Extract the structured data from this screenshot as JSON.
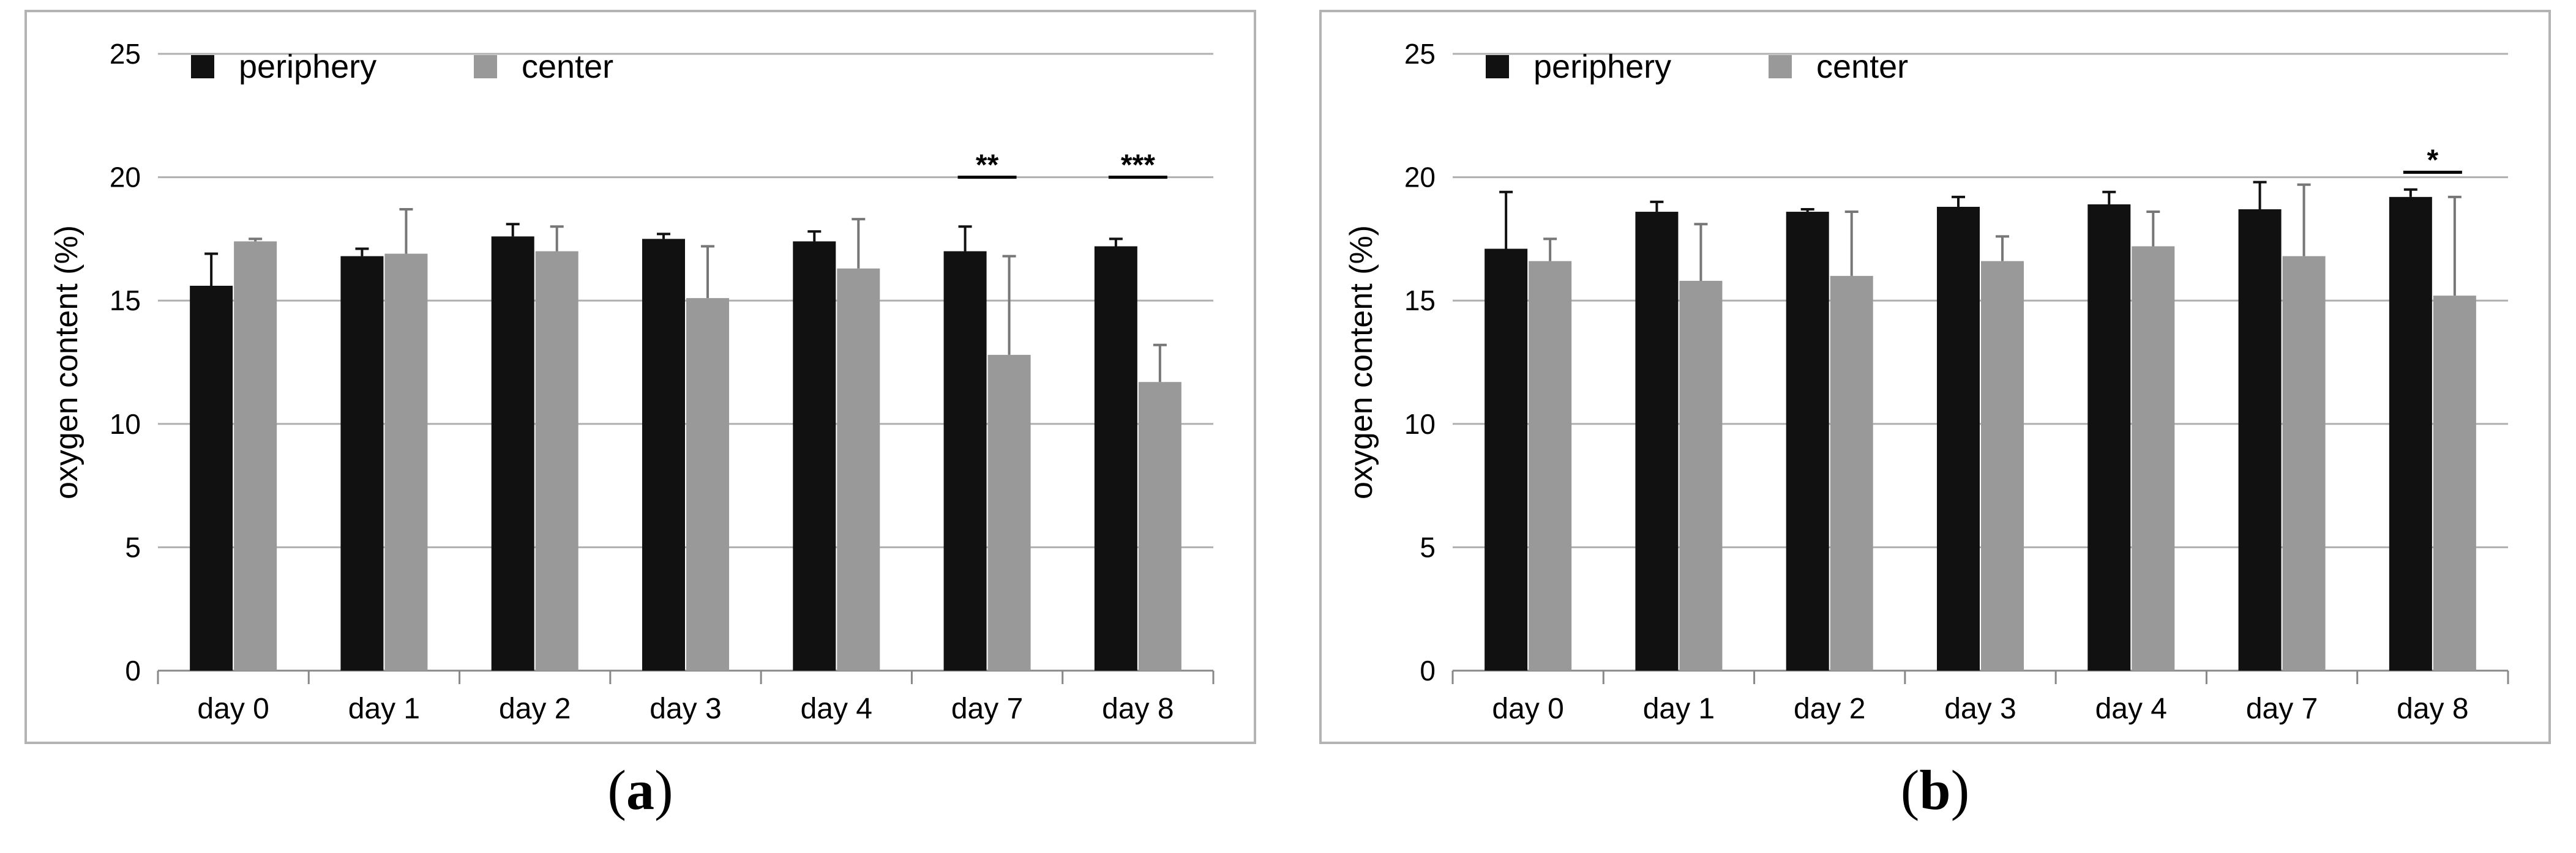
{
  "colors": {
    "periphery": "#111111",
    "center": "#999999",
    "grid": "#b0b0b0",
    "axis": "#888888"
  },
  "captions": [
    {
      "open": "(",
      "letter": "a",
      "close": ")"
    },
    {
      "open": "(",
      "letter": "b",
      "close": ")"
    }
  ],
  "chart_data": [
    {
      "type": "bar",
      "panel": "a",
      "ylabel": "oxygen content (%)",
      "xlabel": "",
      "ylim": [
        0,
        25
      ],
      "yticks": [
        0,
        5,
        10,
        15,
        20,
        25
      ],
      "grid": true,
      "legend_position": "top-left",
      "categories": [
        "day 0",
        "day 1",
        "day 2",
        "day 3",
        "day 4",
        "day 7",
        "day 8"
      ],
      "series": [
        {
          "name": "periphery",
          "values": [
            15.6,
            16.8,
            17.6,
            17.5,
            17.4,
            17.0,
            17.2
          ],
          "errors": [
            1.3,
            0.3,
            0.5,
            0.2,
            0.4,
            1.0,
            0.3
          ]
        },
        {
          "name": "center",
          "values": [
            17.4,
            16.9,
            17.0,
            15.1,
            16.3,
            12.8,
            11.7
          ],
          "errors": [
            0.1,
            1.8,
            1.0,
            2.1,
            2.0,
            4.0,
            1.5
          ]
        }
      ],
      "annotations": [
        {
          "category": "day 7",
          "text": "**",
          "y": 20
        },
        {
          "category": "day 8",
          "text": "***",
          "y": 20
        }
      ]
    },
    {
      "type": "bar",
      "panel": "b",
      "ylabel": "oxygen content (%)",
      "xlabel": "",
      "ylim": [
        0,
        25
      ],
      "yticks": [
        0,
        5,
        10,
        15,
        20,
        25
      ],
      "grid": true,
      "legend_position": "top-left",
      "categories": [
        "day 0",
        "day 1",
        "day 2",
        "day 3",
        "day 4",
        "day 7",
        "day 8"
      ],
      "series": [
        {
          "name": "periphery",
          "values": [
            17.1,
            18.6,
            18.6,
            18.8,
            18.9,
            18.7,
            19.2
          ],
          "errors": [
            2.3,
            0.4,
            0.1,
            0.4,
            0.5,
            1.1,
            0.3
          ]
        },
        {
          "name": "center",
          "values": [
            16.6,
            15.8,
            16.0,
            16.6,
            17.2,
            16.8,
            15.2
          ],
          "errors": [
            0.9,
            2.3,
            2.6,
            1.0,
            1.4,
            2.9,
            4.0
          ]
        }
      ],
      "annotations": [
        {
          "category": "day 8",
          "text": "*",
          "y": 20.2
        }
      ]
    }
  ]
}
